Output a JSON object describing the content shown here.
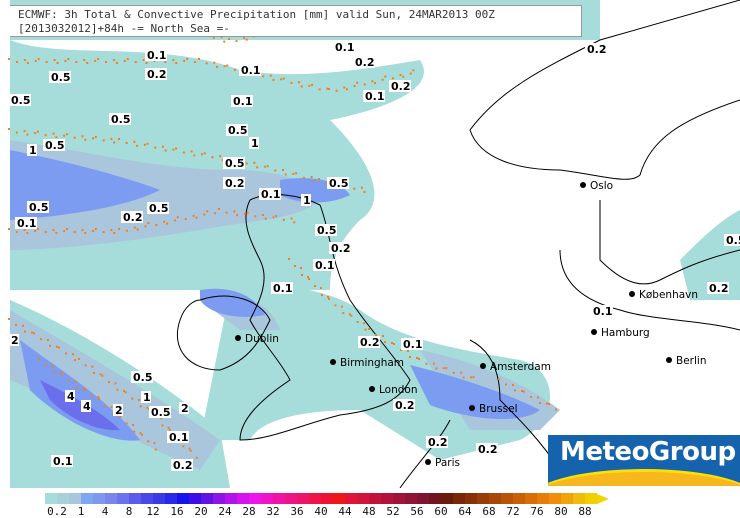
{
  "header": {
    "line1": "ECMWF: 3h Total & Convective Precipitation [mm] valid Sun, 24MAR2013 00Z",
    "line2": "[2013032012]+84h -= North Sea =-"
  },
  "logo": {
    "text": "MeteoGroup",
    "bg_color": "#1563ad",
    "sun_color": "#f6b81e"
  },
  "cities": [
    "Oslo",
    "København",
    "Hamburg",
    "Berlin",
    "Dublin",
    "Birmingham",
    "London",
    "Amsterdam",
    "Brussel",
    "Paris"
  ],
  "contour_labels": [
    "0.1",
    "0.1",
    "0.2",
    "0.1",
    "0.2",
    "0.5",
    "0.5",
    "0.1",
    "0.1",
    "0.2",
    "0.5",
    "0.5",
    "1",
    "0.5",
    "1",
    "0.5",
    "0.2",
    "0.5",
    "0.1",
    "1",
    "0.5",
    "0.2",
    "0.5",
    "0.1",
    "0.5",
    "0.2",
    "0.1",
    "0.1",
    "0.2",
    "0.5",
    "0.2",
    "0.1",
    "2",
    "0.5",
    "1",
    "4",
    "4",
    "2",
    "0.5",
    "2",
    "0.1",
    "0.2",
    "0.1",
    "0.2",
    "0.1",
    "0.2",
    "0.2",
    "0.2"
  ],
  "legend": {
    "unit": "mm",
    "tick_labels": [
      "0.2",
      "1",
      "4",
      "8",
      "12",
      "16",
      "20",
      "24",
      "28",
      "32",
      "36",
      "40",
      "44",
      "48",
      "52",
      "56",
      "60",
      "64",
      "68",
      "72",
      "76",
      "80",
      "88"
    ],
    "colors": [
      "#a6dcd9",
      "#a8d2d8",
      "#a9c6dc",
      "#7fa6f0",
      "#8097ee",
      "#7a86ec",
      "#6c72ec",
      "#5c5cea",
      "#4a48e8",
      "#3a3ae6",
      "#2a2ae8",
      "#1414ec",
      "#3a10e6",
      "#6014e4",
      "#8c14e6",
      "#b014e6",
      "#d414ec",
      "#ee14ee",
      "#ee14c8",
      "#ee14a8",
      "#ee1488",
      "#ee1468",
      "#ee1448",
      "#ec1430",
      "#ee1818",
      "#e0143a",
      "#d0143c",
      "#c0143c",
      "#b0143c",
      "#a0143a",
      "#901438",
      "#801430",
      "#701420",
      "#6a1c0a",
      "#782808",
      "#883008",
      "#983c08",
      "#a84808",
      "#b85408",
      "#c86008",
      "#d86e08",
      "#e87c08",
      "#f08e0c",
      "#f0a40c",
      "#f0bc0c",
      "#f0d000"
    ],
    "accent_dots_color": "#f08020"
  }
}
